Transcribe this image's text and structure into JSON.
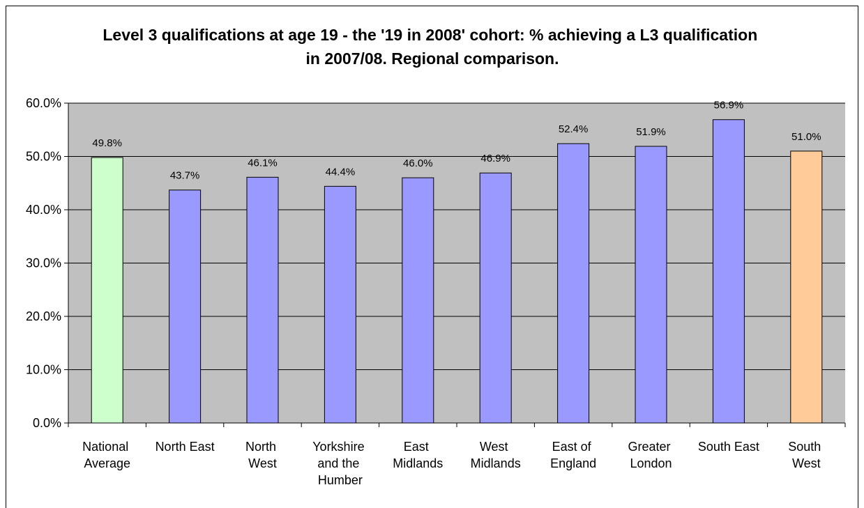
{
  "chart_data": {
    "type": "bar",
    "title": "Level 3 qualifications at age 19 - the '19 in 2008' cohort: % achieving a L3 qualification in 2007/08. Regional comparison.",
    "categories": [
      "National Average",
      "North East",
      "North West",
      "Yorkshire and the Humber",
      "East Midlands",
      "West Midlands",
      "East of England",
      "Greater London",
      "South East",
      "South West"
    ],
    "values": [
      49.8,
      43.7,
      46.1,
      44.4,
      46.0,
      46.9,
      52.4,
      51.9,
      56.9,
      51.0
    ],
    "value_labels": [
      "49.8%",
      "43.7%",
      "46.1%",
      "44.4%",
      "46.0%",
      "46.9%",
      "52.4%",
      "51.9%",
      "56.9%",
      "51.0%"
    ],
    "colors": [
      "#ccffcc",
      "#9999ff",
      "#9999ff",
      "#9999ff",
      "#9999ff",
      "#9999ff",
      "#9999ff",
      "#9999ff",
      "#9999ff",
      "#ffcc99"
    ],
    "ylim": [
      0,
      60
    ],
    "yticks": [
      {
        "value": 0,
        "label": "0.0%"
      },
      {
        "value": 10,
        "label": "10.0%"
      },
      {
        "value": 20,
        "label": "20.0%"
      },
      {
        "value": 30,
        "label": "30.0%"
      },
      {
        "value": 40,
        "label": "40.0%"
      },
      {
        "value": 50,
        "label": "50.0%"
      },
      {
        "value": 60,
        "label": "60.0%"
      }
    ],
    "grid": true
  }
}
